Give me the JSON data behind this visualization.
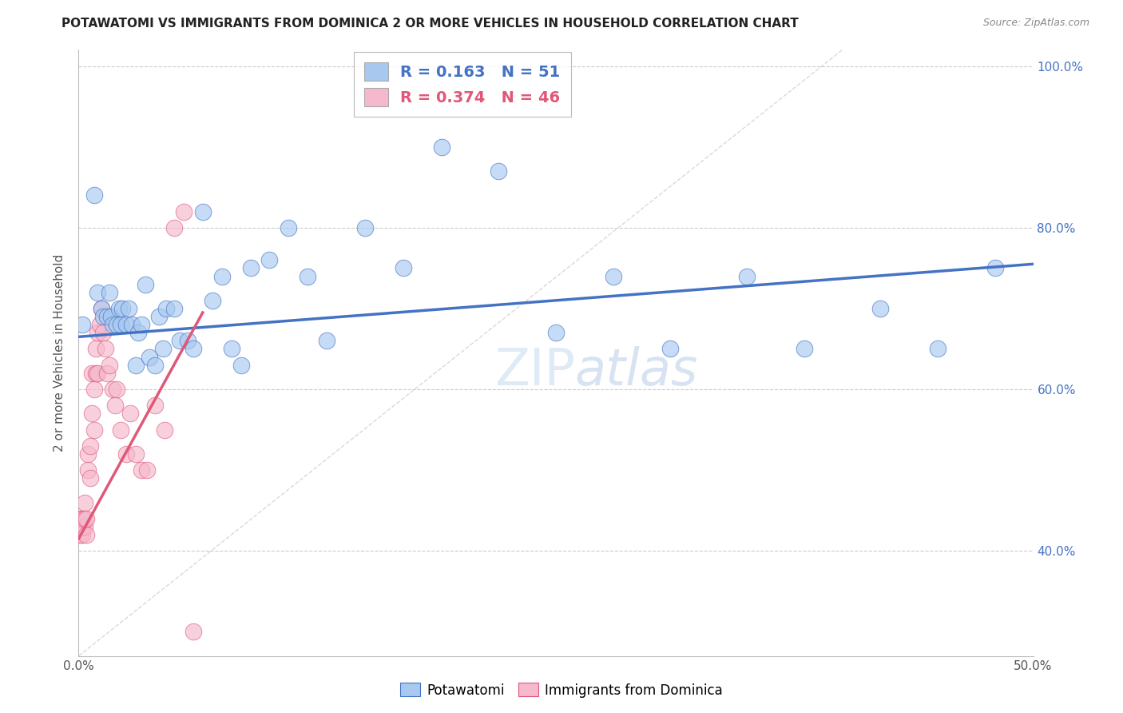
{
  "title": "POTAWATOMI VS IMMIGRANTS FROM DOMINICA 2 OR MORE VEHICLES IN HOUSEHOLD CORRELATION CHART",
  "source": "Source: ZipAtlas.com",
  "ylabel": "2 or more Vehicles in Household",
  "xmin": 0.0,
  "xmax": 0.5,
  "ymin": 0.27,
  "ymax": 1.02,
  "x_ticks": [
    0.0,
    0.1,
    0.2,
    0.3,
    0.4,
    0.5
  ],
  "x_tick_labels": [
    "0.0%",
    "",
    "",
    "",
    "",
    "50.0%"
  ],
  "y_ticks": [
    0.4,
    0.6,
    0.8,
    1.0
  ],
  "y_tick_labels": [
    "40.0%",
    "60.0%",
    "80.0%",
    "100.0%"
  ],
  "potawatomi_color": "#a8c8f0",
  "dominica_color": "#f5b8cc",
  "trend_blue": "#4472c4",
  "trend_pink": "#e05878",
  "diagonal_color": "#dddddd",
  "R_blue": 0.163,
  "N_blue": 51,
  "R_pink": 0.374,
  "N_pink": 46,
  "potawatomi_x": [
    0.002,
    0.008,
    0.01,
    0.012,
    0.013,
    0.015,
    0.016,
    0.017,
    0.018,
    0.02,
    0.021,
    0.022,
    0.023,
    0.025,
    0.026,
    0.028,
    0.03,
    0.031,
    0.033,
    0.035,
    0.037,
    0.04,
    0.042,
    0.044,
    0.046,
    0.05,
    0.053,
    0.057,
    0.06,
    0.065,
    0.07,
    0.075,
    0.08,
    0.085,
    0.09,
    0.1,
    0.11,
    0.12,
    0.13,
    0.15,
    0.17,
    0.19,
    0.22,
    0.25,
    0.28,
    0.31,
    0.35,
    0.38,
    0.42,
    0.45,
    0.48
  ],
  "potawatomi_y": [
    0.68,
    0.84,
    0.72,
    0.7,
    0.69,
    0.69,
    0.72,
    0.69,
    0.68,
    0.68,
    0.7,
    0.68,
    0.7,
    0.68,
    0.7,
    0.68,
    0.63,
    0.67,
    0.68,
    0.73,
    0.64,
    0.63,
    0.69,
    0.65,
    0.7,
    0.7,
    0.66,
    0.66,
    0.65,
    0.82,
    0.71,
    0.74,
    0.65,
    0.63,
    0.75,
    0.76,
    0.8,
    0.74,
    0.66,
    0.8,
    0.75,
    0.9,
    0.87,
    0.67,
    0.74,
    0.65,
    0.74,
    0.65,
    0.7,
    0.65,
    0.75
  ],
  "dominica_x": [
    0.001,
    0.001,
    0.001,
    0.001,
    0.001,
    0.002,
    0.002,
    0.002,
    0.002,
    0.003,
    0.003,
    0.003,
    0.004,
    0.004,
    0.005,
    0.005,
    0.006,
    0.006,
    0.007,
    0.007,
    0.008,
    0.008,
    0.009,
    0.009,
    0.01,
    0.01,
    0.011,
    0.012,
    0.013,
    0.014,
    0.015,
    0.016,
    0.018,
    0.019,
    0.02,
    0.022,
    0.025,
    0.027,
    0.03,
    0.033,
    0.036,
    0.04,
    0.045,
    0.05,
    0.055,
    0.06
  ],
  "dominica_y": [
    0.43,
    0.43,
    0.43,
    0.42,
    0.44,
    0.42,
    0.43,
    0.44,
    0.44,
    0.46,
    0.43,
    0.44,
    0.42,
    0.44,
    0.5,
    0.52,
    0.49,
    0.53,
    0.57,
    0.62,
    0.55,
    0.6,
    0.62,
    0.65,
    0.62,
    0.67,
    0.68,
    0.7,
    0.67,
    0.65,
    0.62,
    0.63,
    0.6,
    0.58,
    0.6,
    0.55,
    0.52,
    0.57,
    0.52,
    0.5,
    0.5,
    0.58,
    0.55,
    0.8,
    0.82,
    0.3
  ],
  "legend_label_blue": "Potawatomi",
  "legend_label_pink": "Immigrants from Dominica",
  "blue_trend_x0": 0.0,
  "blue_trend_x1": 0.5,
  "blue_trend_y0": 0.665,
  "blue_trend_y1": 0.755,
  "pink_trend_x0": 0.0,
  "pink_trend_x1": 0.065,
  "pink_trend_y0": 0.415,
  "pink_trend_y1": 0.695
}
